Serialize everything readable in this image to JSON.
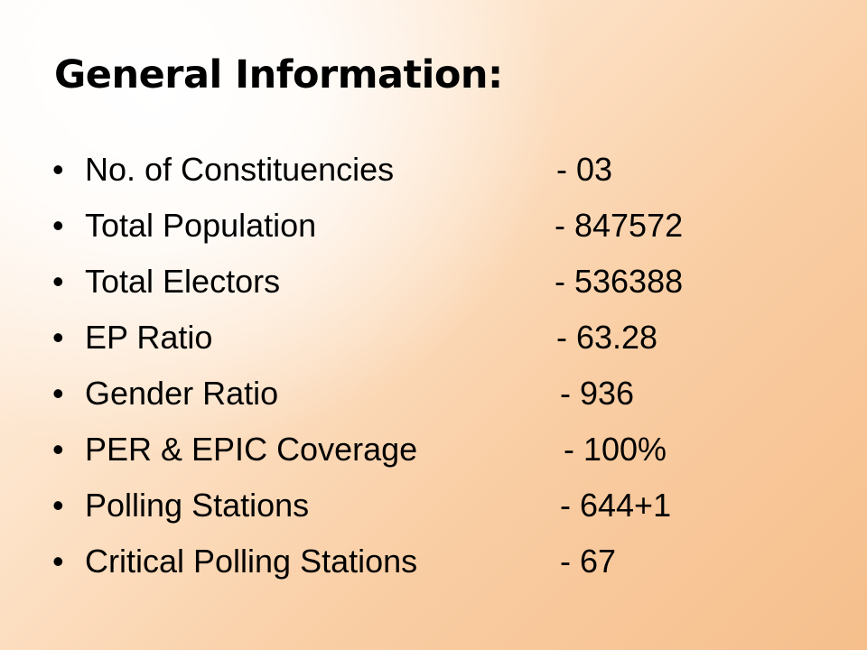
{
  "slide": {
    "title": "General Information:",
    "bullet_glyph": "•",
    "items": [
      {
        "label": "No. of Constituencies",
        "value": "-  03"
      },
      {
        "label": "Total Population",
        "value": "-  847572"
      },
      {
        "label": "Total Electors",
        "value": "-  536388"
      },
      {
        "label": "EP Ratio",
        "value": "-  63.28"
      },
      {
        "label": "Gender Ratio",
        "value": "-  936"
      },
      {
        "label": "PER & EPIC Coverage",
        "value": "-  100%"
      },
      {
        "label": "Polling Stations",
        "value": "-  644+1"
      },
      {
        "label": "Critical Polling Stations",
        "value": "-  67"
      }
    ]
  }
}
